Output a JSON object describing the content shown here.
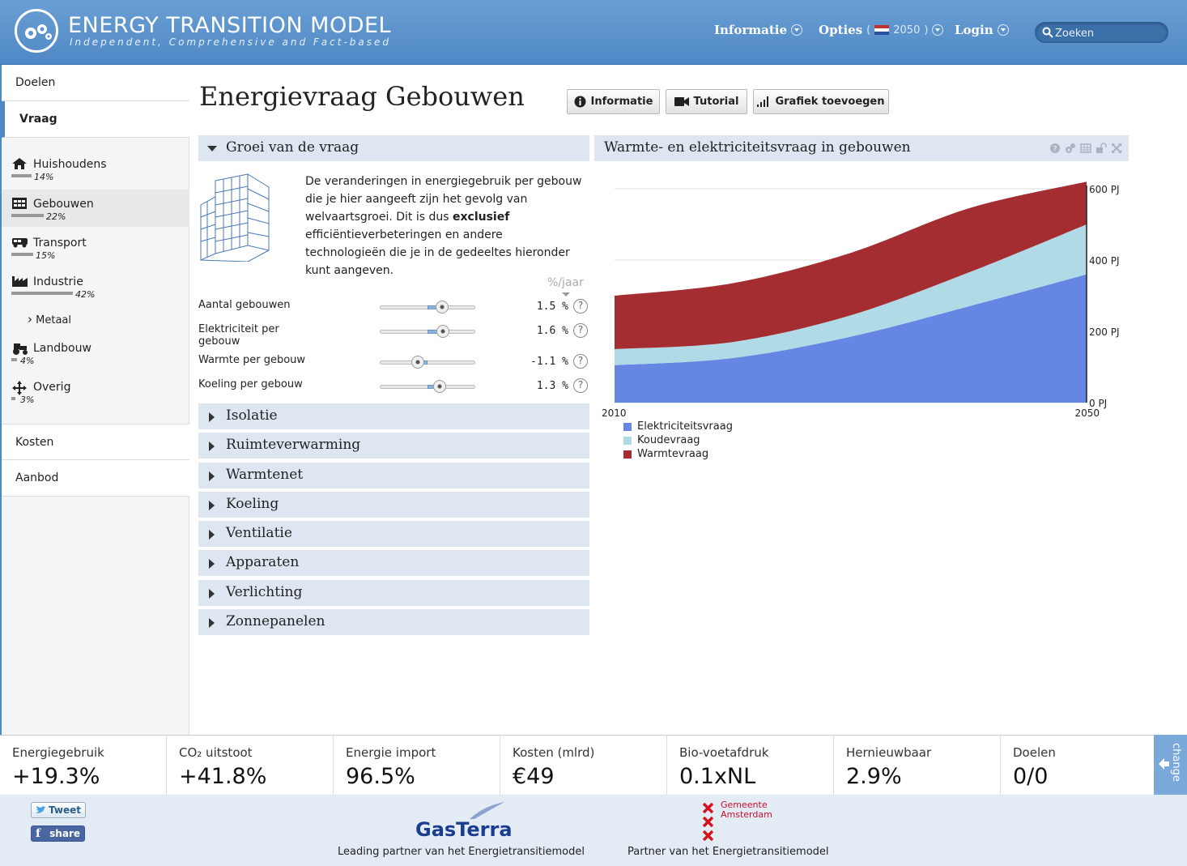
{
  "header": {
    "title": "ENERGY TRANSITION MODEL",
    "subtitle": "Independent, Comprehensive and Fact-based",
    "nav": {
      "info": "Informatie",
      "options": "Opties",
      "year": "2050",
      "login": "Login"
    },
    "search_placeholder": "Zoeken"
  },
  "sidebar": {
    "doelen": "Doelen",
    "vraag": "Vraag",
    "items": [
      {
        "label": "Huishoudens",
        "pct": "14%",
        "icon": "house-icon",
        "share": 0.14
      },
      {
        "label": "Gebouwen",
        "pct": "22%",
        "icon": "building-icon",
        "share": 0.22
      },
      {
        "label": "Transport",
        "pct": "15%",
        "icon": "truck-icon",
        "share": 0.15
      },
      {
        "label": "Industrie",
        "pct": "42%",
        "icon": "factory-icon",
        "share": 0.42
      },
      {
        "label": "Landbouw",
        "pct": "4%",
        "icon": "tractor-icon",
        "share": 0.04
      },
      {
        "label": "Overig",
        "pct": "3%",
        "icon": "arrows-icon",
        "share": 0.03
      }
    ],
    "sub_item": "Metaal",
    "kosten": "Kosten",
    "aanbod": "Aanbod"
  },
  "main": {
    "title": "Energievraag Gebouwen",
    "buttons": {
      "info": "Informatie",
      "tutorial": "Tutorial",
      "add_chart": "Grafiek toevoegen"
    },
    "open_section": "Groei van de vraag",
    "intro_part1": "De veranderingen in energiegebruik per gebouw die je hier aangeeft zijn het gevolg van welvaartsgroei. Dit is dus ",
    "intro_bold": "exclusief",
    "intro_part2": " efficiëntieverbeteringen en andere technologieën die je in de gedeeltes hieronder kunt aangeven.",
    "unit": "%/jaar",
    "sliders": [
      {
        "label": "Aantal gebouwen",
        "value": "1.5 %",
        "level": 0.65
      },
      {
        "label": "Elektriciteit per gebouw",
        "value": "1.6 %",
        "level": 0.66
      },
      {
        "label": "Warmte per gebouw",
        "value": "-1.1 %",
        "level": 0.4
      },
      {
        "label": "Koeling per gebouw",
        "value": "1.3 %",
        "level": 0.63
      }
    ],
    "sections": [
      "Isolatie",
      "Ruimteverwarming",
      "Warmtenet",
      "Koeling",
      "Ventilatie",
      "Apparaten",
      "Verlichting",
      "Zonnepanelen"
    ]
  },
  "chart_data": {
    "type": "area",
    "title": "Warmte- en elektriciteitsvraag in gebouwen",
    "x": [
      2010,
      2020,
      2030,
      2040,
      2050
    ],
    "ylim": [
      0,
      600
    ],
    "y_ticks": [
      "0 PJ",
      "200 PJ",
      "400 PJ",
      "600 PJ"
    ],
    "x_ticks": [
      "2010",
      "2050"
    ],
    "stacked": true,
    "series": [
      {
        "name": "Elektriciteitsvraag",
        "color": "#6686e3",
        "values": [
          105,
          125,
          185,
          270,
          360
        ]
      },
      {
        "name": "Koudevraag",
        "color": "#b0dbe6",
        "values": [
          45,
          45,
          60,
          95,
          140
        ]
      },
      {
        "name": "Warmtevraag",
        "color": "#a32d30",
        "values": [
          150,
          165,
          175,
          180,
          120
        ]
      }
    ]
  },
  "stats": [
    {
      "label": "Energiegebruik",
      "value": "+19.3%"
    },
    {
      "label": "CO₂ uitstoot",
      "value": "+41.8%"
    },
    {
      "label": "Energie import",
      "value": "96.5%"
    },
    {
      "label": "Kosten (mlrd)",
      "value": "€49"
    },
    {
      "label": "Bio-voetafdruk",
      "value": "0.1xNL"
    },
    {
      "label": "Hernieuwbaar",
      "value": "2.9%"
    },
    {
      "label": "Doelen",
      "value": "0/0"
    }
  ],
  "change_tab": "change",
  "footer": {
    "tweet": "Tweet",
    "share": "share",
    "gasterra_logo": "GasTerra",
    "gasterra_text": "Leading partner van het Energietransitiemodel",
    "amsterdam_logo_line1": "Gemeente",
    "amsterdam_logo_line2": "Amsterdam",
    "amsterdam_text": "Partner van het Energietransitiemodel"
  }
}
